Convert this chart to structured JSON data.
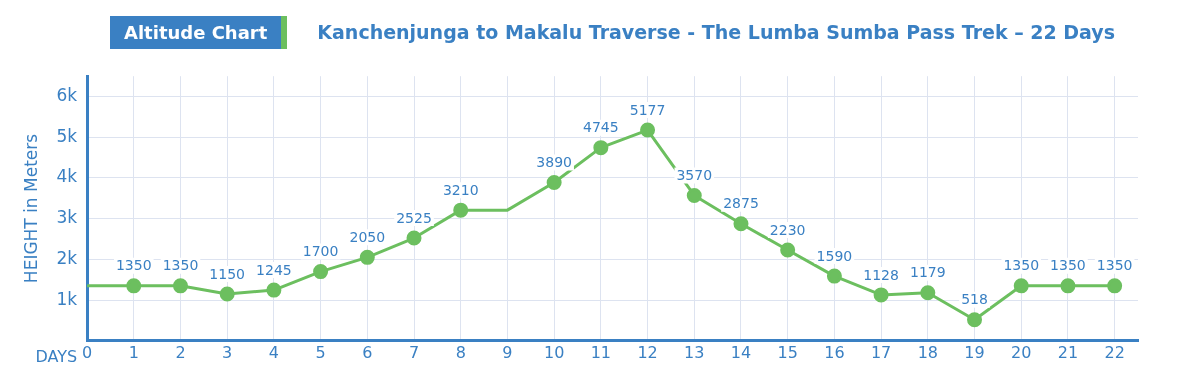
{
  "chart_data": {
    "type": "line",
    "title": "Kanchenjunga to Makalu Traverse - The Lumba Sumba Pass Trek – 22 Days",
    "subtitle": "Altitude Chart",
    "xlabel": "DAYS",
    "ylabel": "HEIGHT in Meters",
    "x": [
      0,
      1,
      2,
      3,
      4,
      5,
      6,
      7,
      8,
      9,
      10,
      11,
      12,
      13,
      14,
      15,
      16,
      17,
      18,
      19,
      20,
      21,
      22
    ],
    "series": [
      {
        "color": "#6cbf5f",
        "values": [
          1350,
          1350,
          1350,
          1150,
          1245,
          1700,
          2050,
          2525,
          3210,
          3210,
          3890,
          4745,
          5177,
          3570,
          2875,
          2230,
          1590,
          1128,
          1179,
          518,
          1350,
          1350,
          1350
        ],
        "value_labels": [
          null,
          "1350",
          "1350",
          "1150",
          "1245",
          "1700",
          "2050",
          "2525",
          "3210",
          null,
          "3890",
          "4745",
          "5177",
          "3570",
          "2875",
          "2230",
          "1590",
          "1128",
          "1179",
          "518",
          "1350",
          "1350",
          "1350"
        ]
      }
    ],
    "xlim": [
      0,
      22.5
    ],
    "xticks": [
      0,
      1,
      2,
      3,
      4,
      5,
      6,
      7,
      8,
      9,
      10,
      11,
      12,
      13,
      14,
      15,
      16,
      17,
      18,
      19,
      20,
      21,
      22
    ],
    "ylim": [
      0,
      6500
    ],
    "yticks": [
      {
        "value": 1000,
        "label": "1k"
      },
      {
        "value": 2000,
        "label": "2k"
      },
      {
        "value": 3000,
        "label": "3k"
      },
      {
        "value": 4000,
        "label": "4k"
      },
      {
        "value": 5000,
        "label": "5k"
      },
      {
        "value": 6000,
        "label": "6k"
      }
    ],
    "grid": true,
    "legend": false,
    "marker": "circle",
    "line_style": "solid"
  }
}
